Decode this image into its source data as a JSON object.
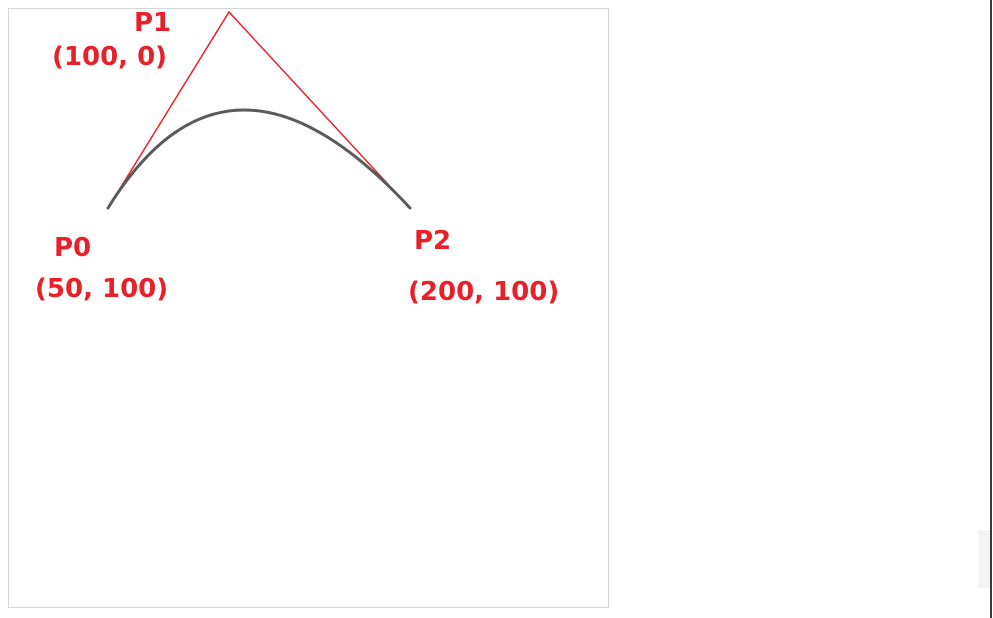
{
  "colors": {
    "control_lines": "#e8202a",
    "curve": "#555555",
    "labels": "#e8202a",
    "frame_border": "#d4d4d4"
  },
  "points": [
    {
      "name": "P0",
      "coord": "(50, 100)"
    },
    {
      "name": "P1",
      "coord": "(100, 0)"
    },
    {
      "name": "P2",
      "coord": "(200, 100)"
    }
  ]
}
